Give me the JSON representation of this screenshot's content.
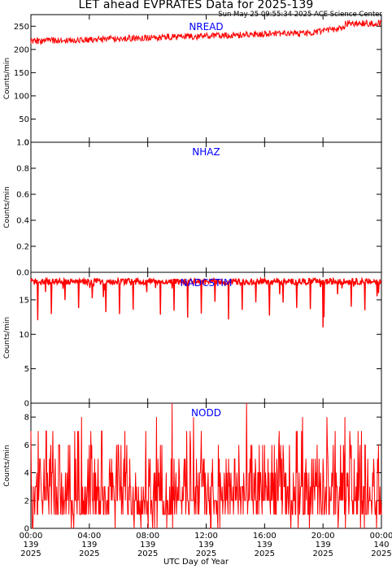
{
  "header": {
    "title": "LET ahead EVPRATES Data for 2025-139",
    "timestamp": "Sun May 25 09:55:34 2025 ACE Science Center"
  },
  "colors": {
    "series": "#ff0000",
    "panel_label": "#0000ff",
    "axes": "#000000"
  },
  "chart_data": [
    {
      "type": "line",
      "name": "NREAD",
      "ylabel": "Counts/min",
      "ylim": [
        0,
        275
      ],
      "yticks": [
        0,
        50,
        100,
        150,
        200,
        250
      ],
      "xlim": [
        0,
        24
      ],
      "approx_series": "rises from ~218 to ~260 counts/min across the day, noisy"
    },
    {
      "type": "line",
      "name": "NHAZ",
      "ylabel": "Counts/min",
      "ylim": [
        0,
        1
      ],
      "yticks": [
        "0.0",
        "0.2",
        "0.4",
        "0.6",
        "0.8",
        "1.0"
      ],
      "xlim": [
        0,
        24
      ],
      "approx_series": "0 throughout"
    },
    {
      "type": "line",
      "name": "NADCSTIM",
      "ylabel": "Counts/min",
      "ylim": [
        0,
        19
      ],
      "yticks": [
        0,
        5,
        10,
        15
      ],
      "xlim": [
        0,
        24
      ],
      "approx_series": "band between ~17 and ~18 with periodic drops to 11-16"
    },
    {
      "type": "line",
      "name": "NODD",
      "ylabel": "Counts/min",
      "ylim": [
        0,
        9
      ],
      "yticks": [
        0,
        2,
        4,
        6,
        8
      ],
      "xlim": [
        0,
        24
      ],
      "approx_series": "integer noise mostly between 0 and 4, occasional spikes to 7-9"
    }
  ],
  "xaxis": {
    "title": "UTC Day of Year",
    "ticks": [
      {
        "hour": 0,
        "time": "00:00",
        "doy": "139",
        "year": "2025"
      },
      {
        "hour": 4,
        "time": "04:00",
        "doy": "139",
        "year": "2025"
      },
      {
        "hour": 8,
        "time": "08:00",
        "doy": "139",
        "year": "2025"
      },
      {
        "hour": 12,
        "time": "12:00",
        "doy": "139",
        "year": "2025"
      },
      {
        "hour": 16,
        "time": "16:00",
        "doy": "139",
        "year": "2025"
      },
      {
        "hour": 20,
        "time": "20:00",
        "doy": "139",
        "year": "2025"
      },
      {
        "hour": 24,
        "time": "00:00",
        "doy": "140",
        "year": "2025"
      }
    ]
  }
}
